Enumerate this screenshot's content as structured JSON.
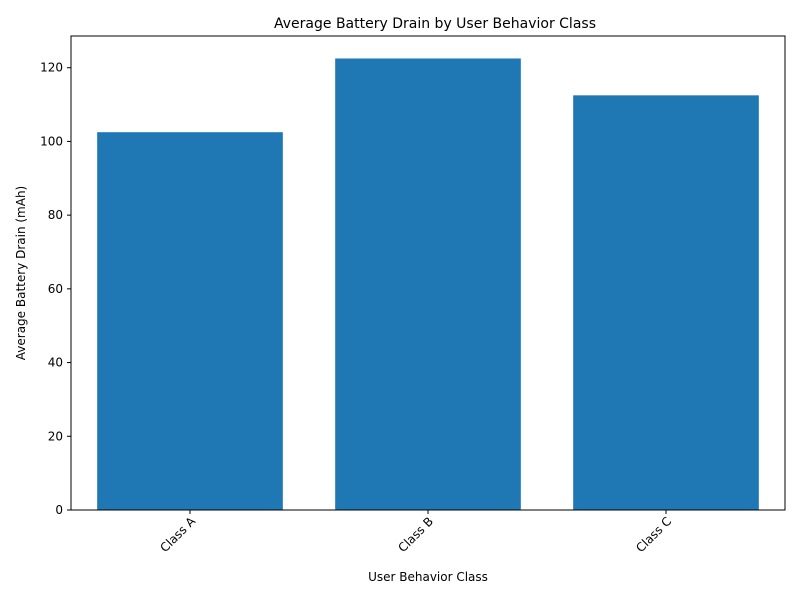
{
  "chart_data": {
    "type": "bar",
    "title": "Average Battery Drain by User Behavior Class",
    "xlabel": "User Behavior Class",
    "ylabel": "Average Battery Drain (mAh)",
    "categories": [
      "Class A",
      "Class B",
      "Class C"
    ],
    "values": [
      102.5,
      122.5,
      112.5
    ],
    "ylim": [
      0,
      128.6
    ],
    "yticks": [
      0,
      20,
      40,
      60,
      80,
      100,
      120
    ],
    "x_tick_rotation": 45,
    "grid": false,
    "legend": "none",
    "bar_color": "#1f77b4"
  }
}
